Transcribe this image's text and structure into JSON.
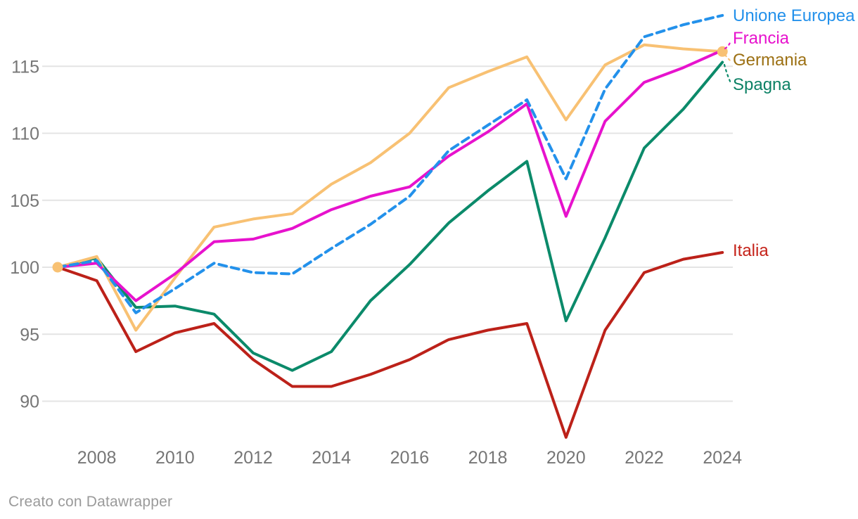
{
  "footer": {
    "attribution": "Creato con Datawrapper"
  },
  "colors": {
    "background": "#ffffff",
    "grid": "#e4e4e4",
    "axis_text": "#767676",
    "footer_text": "#9a9a9a",
    "end_dot": "#f8c173"
  },
  "chart_data": {
    "type": "line",
    "title": "",
    "x": [
      2007,
      2008,
      2009,
      2010,
      2011,
      2012,
      2013,
      2014,
      2015,
      2016,
      2017,
      2018,
      2019,
      2020,
      2021,
      2022,
      2023,
      2024
    ],
    "x_tick_labels": [
      "2008",
      "2010",
      "2012",
      "2014",
      "2016",
      "2018",
      "2020",
      "2022",
      "2024"
    ],
    "y_ticks": [
      90,
      95,
      100,
      105,
      110,
      115
    ],
    "ylim": [
      86.5,
      119.5
    ],
    "xlabel": "",
    "ylabel": "",
    "grid": "horizontal",
    "legend_position": "direct-labels-right",
    "baseline_value": 100,
    "series": [
      {
        "name": "Unione Europea",
        "slug": "unione-europea",
        "line_color": "#2391eb",
        "label_color": "#2391eb",
        "dashed": true,
        "values": [
          100,
          100.5,
          96.6,
          98.4,
          100.3,
          99.6,
          99.5,
          101.4,
          103.2,
          105.3,
          108.7,
          110.6,
          112.5,
          106.6,
          113.3,
          117.2,
          118.1,
          118.8
        ]
      },
      {
        "name": "Francia",
        "slug": "francia",
        "line_color": "#e712cd",
        "label_color": "#e712cd",
        "dashed": false,
        "values": [
          100,
          100.3,
          97.5,
          99.5,
          101.9,
          102.1,
          102.9,
          104.3,
          105.3,
          106.0,
          108.3,
          110.1,
          112.2,
          103.8,
          110.9,
          113.8,
          114.9,
          116.2
        ]
      },
      {
        "name": "Germania",
        "slug": "germania",
        "line_color": "#f8c173",
        "label_color": "#9c7013",
        "dashed": false,
        "end_dots": true,
        "values": [
          100,
          100.8,
          95.3,
          99.2,
          103.0,
          103.6,
          104.0,
          106.2,
          107.8,
          110.0,
          113.4,
          114.6,
          115.7,
          111.0,
          115.1,
          116.6,
          116.3,
          116.1
        ]
      },
      {
        "name": "Spagna",
        "slug": "spagna",
        "line_color": "#0b8a6a",
        "label_color": "#0c8165",
        "dashed": false,
        "values": [
          100,
          100.7,
          97.0,
          97.1,
          96.5,
          93.6,
          92.3,
          93.7,
          97.5,
          100.2,
          103.3,
          105.7,
          107.9,
          96.0,
          102.2,
          108.9,
          111.8,
          115.3
        ]
      },
      {
        "name": "Italia",
        "slug": "italia",
        "line_color": "#bc2119",
        "label_color": "#c5231a",
        "dashed": false,
        "values": [
          100,
          99.0,
          93.7,
          95.1,
          95.8,
          93.1,
          91.1,
          91.1,
          92.0,
          93.1,
          94.6,
          95.3,
          95.8,
          87.3,
          95.3,
          99.6,
          100.6,
          101.1
        ]
      }
    ]
  }
}
